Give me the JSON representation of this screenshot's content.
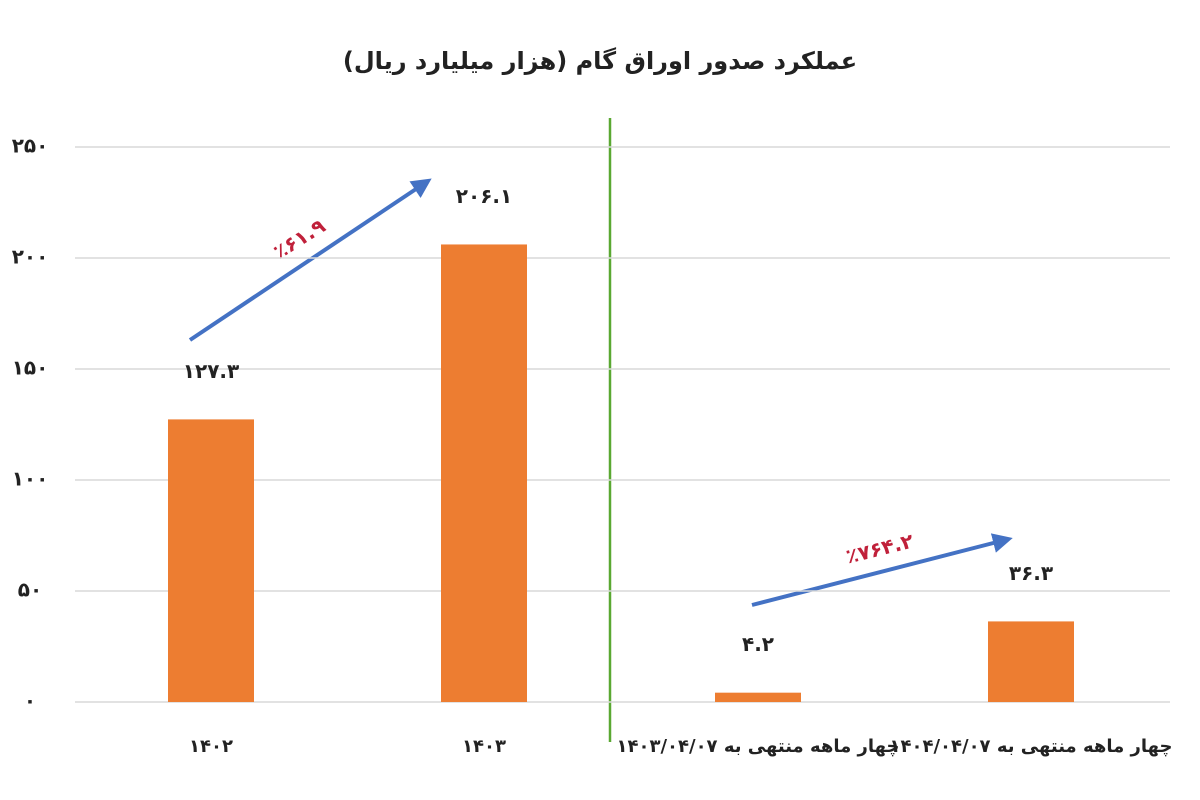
{
  "chart_data": {
    "type": "bar",
    "title": "عملکرد صدور اوراق گام (هزار میلیارد ریال)",
    "categories": [
      "۱۴۰۲",
      "۱۴۰۳",
      "چهار ماهه منتهی به ۱۴۰۳/۰۴/۰۷",
      "چهار ماهه منتهی به ۱۴۰۴/۰۴/۰۷"
    ],
    "values": [
      127.3,
      206.1,
      4.2,
      36.3
    ],
    "value_labels": [
      "۱۲۷.۳",
      "۲۰۶.۱",
      "۴.۲",
      "۳۶.۳"
    ],
    "color": "#ed7d31",
    "ylim": [
      0,
      250
    ],
    "yticks": [
      {
        "value": 0,
        "label": "۰"
      },
      {
        "value": 50,
        "label": "۵۰"
      },
      {
        "value": 100,
        "label": "۱۰۰"
      },
      {
        "value": 150,
        "label": "۱۵۰"
      },
      {
        "value": 200,
        "label": "۲۰۰"
      },
      {
        "value": 250,
        "label": "۲۵۰"
      }
    ],
    "grid": true,
    "annotations": [
      "٪۶۱.۹",
      "٪۷۶۴.۲"
    ]
  }
}
